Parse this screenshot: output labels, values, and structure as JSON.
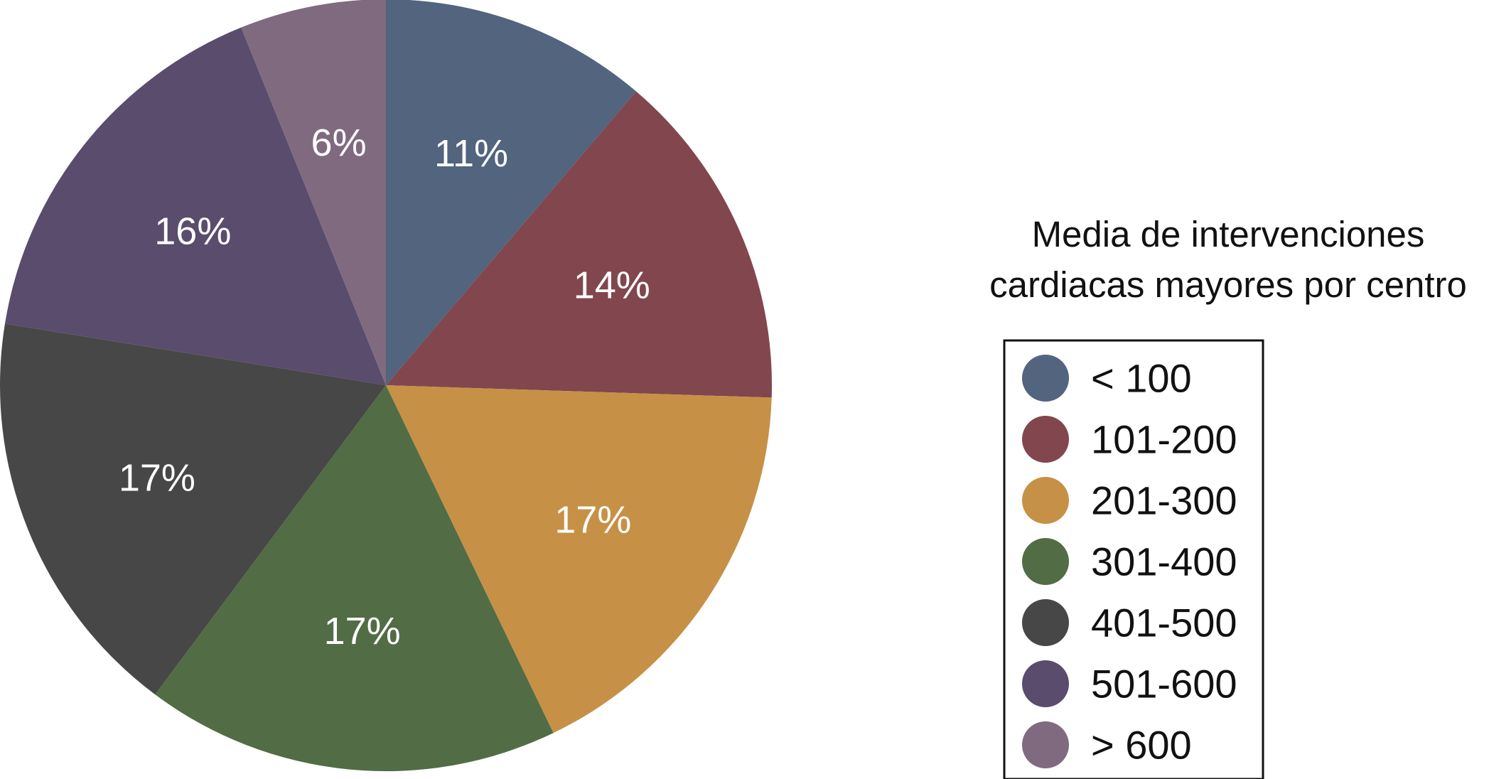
{
  "chart_data": {
    "type": "pie",
    "legend_title": "Media de intervenciones cardiacas mayores por centro",
    "legend_title_lines": [
      "Media de intervenciones",
      "cardiacas mayores por centro"
    ],
    "legend_position": "right",
    "start_angle": "12 o'clock",
    "direction": "clockwise",
    "categories": [
      "< 100",
      "101-200",
      "201-300",
      "301-400",
      "401-500",
      "501-600",
      "> 600"
    ],
    "values": [
      11,
      14,
      17,
      17,
      17,
      16,
      6
    ],
    "labels": [
      "11%",
      "14%",
      "17%",
      "17%",
      "17%",
      "16%",
      "6%"
    ],
    "colors": [
      "#52647e",
      "#82464e",
      "#c69146",
      "#526c45",
      "#474747",
      "#5a4c6d",
      "#806a80"
    ],
    "label_color": "#ffffff"
  }
}
